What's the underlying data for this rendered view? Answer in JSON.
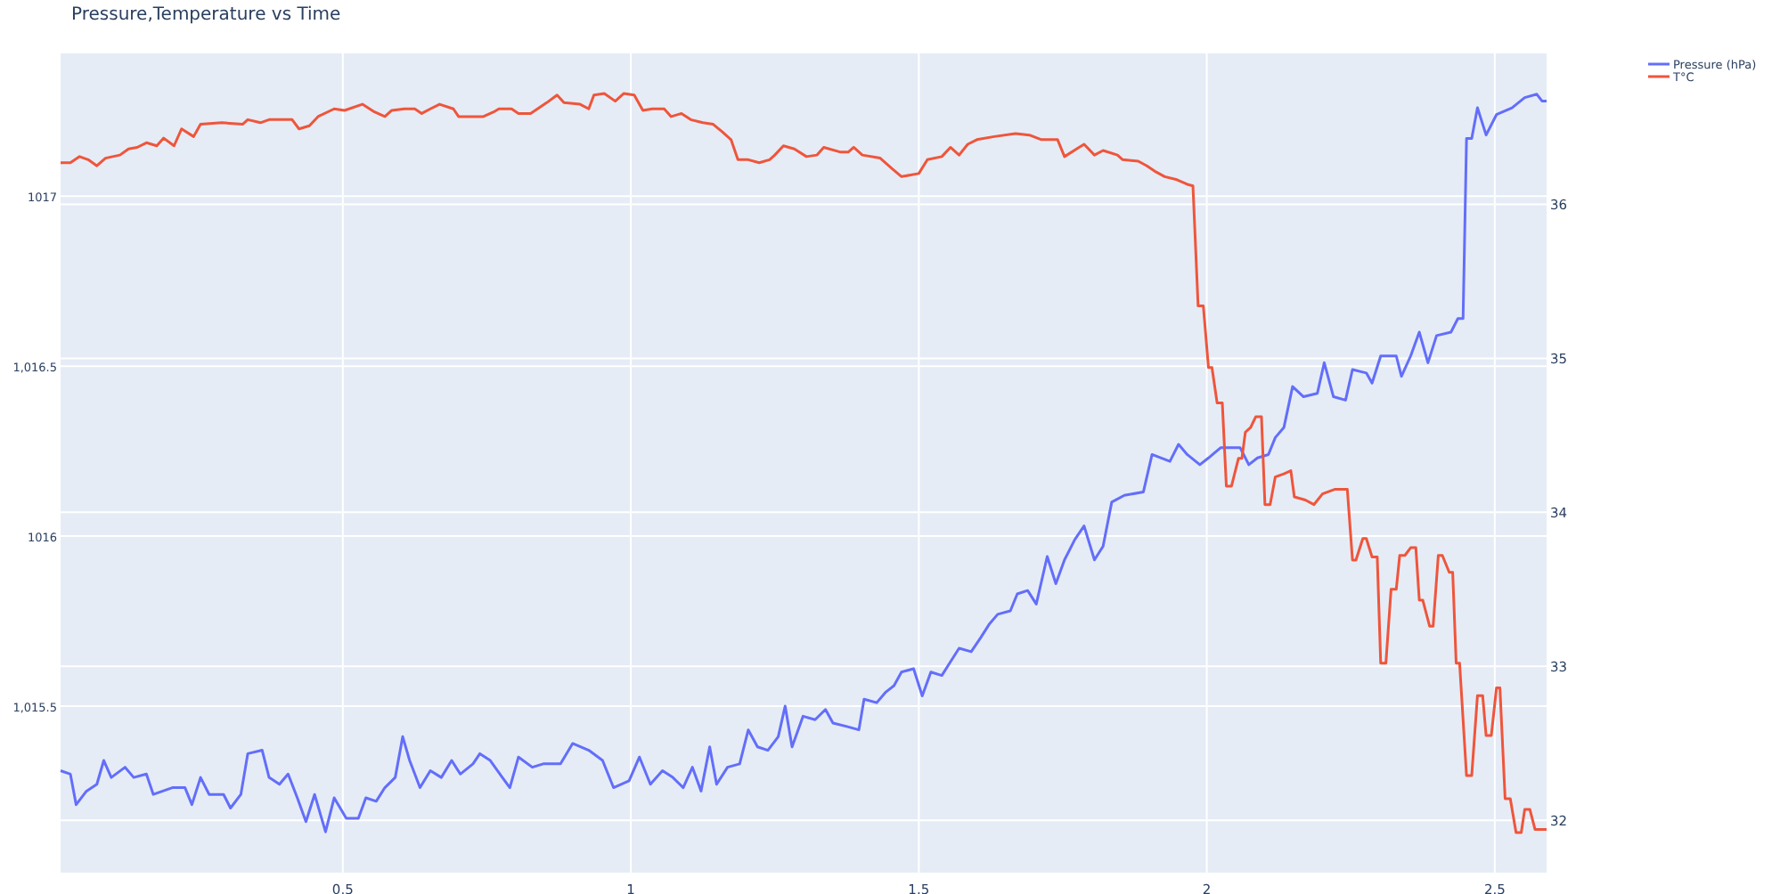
{
  "chart_data": {
    "type": "line",
    "title": "Pressure,Temperature vs Time",
    "legend": "top right",
    "grid": true,
    "line_style": "solid",
    "marker": "none",
    "xlim": [
      0.01,
      2.59
    ],
    "xticks": [
      0.5,
      1,
      1.5,
      2,
      2.5
    ],
    "ylim": [
      1015.01,
      1017.42
    ],
    "yticks": [
      {
        "value": 1015.5,
        "label": "1,015.5"
      },
      1016,
      {
        "value": 1016.5,
        "label": "1,016.5"
      },
      1017
    ],
    "y2lim": [
      31.66,
      36.98
    ],
    "y2ticks": [
      32,
      33,
      34,
      35,
      36
    ],
    "series": [
      {
        "name": "Pressure (hPa)",
        "color": "#636efa",
        "x": [
          0.01,
          0.027,
          0.037,
          0.055,
          0.073,
          0.085,
          0.098,
          0.122,
          0.137,
          0.159,
          0.171,
          0.204,
          0.226,
          0.238,
          0.253,
          0.268,
          0.293,
          0.305,
          0.323,
          0.335,
          0.36,
          0.372,
          0.39,
          0.405,
          0.421,
          0.436,
          0.451,
          0.47,
          0.485,
          0.506,
          0.527,
          0.54,
          0.558,
          0.573,
          0.591,
          0.604,
          0.616,
          0.634,
          0.652,
          0.671,
          0.689,
          0.704,
          0.726,
          0.738,
          0.756,
          0.777,
          0.79,
          0.805,
          0.829,
          0.848,
          0.878,
          0.899,
          0.927,
          0.951,
          0.97,
          0.997,
          1.015,
          1.034,
          1.055,
          1.073,
          1.091,
          1.107,
          1.122,
          1.137,
          1.149,
          1.168,
          1.189,
          1.204,
          1.22,
          1.238,
          1.256,
          1.268,
          1.28,
          1.299,
          1.32,
          1.338,
          1.351,
          1.375,
          1.396,
          1.405,
          1.427,
          1.442,
          1.457,
          1.47,
          1.491,
          1.506,
          1.521,
          1.54,
          1.555,
          1.57,
          1.591,
          1.607,
          1.622,
          1.637,
          1.659,
          1.671,
          1.689,
          1.704,
          1.723,
          1.738,
          1.753,
          1.771,
          1.787,
          1.805,
          1.82,
          1.835,
          1.857,
          1.89,
          1.905,
          1.936,
          1.951,
          1.966,
          1.988,
          2.003,
          2.024,
          2.058,
          2.073,
          2.088,
          2.107,
          2.119,
          2.134,
          2.149,
          2.168,
          2.192,
          2.204,
          2.22,
          2.241,
          2.253,
          2.277,
          2.287,
          2.302,
          2.329,
          2.338,
          2.354,
          2.369,
          2.384,
          2.399,
          2.424,
          2.436,
          2.445,
          2.451,
          2.46,
          2.47,
          2.485,
          2.503,
          2.53,
          2.552,
          2.573,
          2.582,
          2.59
        ],
        "values": [
          1015.31,
          1015.3,
          1015.21,
          1015.25,
          1015.27,
          1015.34,
          1015.29,
          1015.32,
          1015.29,
          1015.3,
          1015.24,
          1015.26,
          1015.26,
          1015.21,
          1015.29,
          1015.24,
          1015.24,
          1015.2,
          1015.24,
          1015.36,
          1015.37,
          1015.29,
          1015.27,
          1015.3,
          1015.23,
          1015.16,
          1015.24,
          1015.13,
          1015.23,
          1015.17,
          1015.17,
          1015.23,
          1015.22,
          1015.26,
          1015.29,
          1015.41,
          1015.34,
          1015.26,
          1015.31,
          1015.29,
          1015.34,
          1015.3,
          1015.33,
          1015.36,
          1015.34,
          1015.29,
          1015.26,
          1015.35,
          1015.32,
          1015.33,
          1015.33,
          1015.39,
          1015.37,
          1015.34,
          1015.26,
          1015.28,
          1015.35,
          1015.27,
          1015.31,
          1015.29,
          1015.26,
          1015.32,
          1015.25,
          1015.38,
          1015.27,
          1015.32,
          1015.33,
          1015.43,
          1015.38,
          1015.37,
          1015.41,
          1015.5,
          1015.38,
          1015.47,
          1015.46,
          1015.49,
          1015.45,
          1015.44,
          1015.43,
          1015.52,
          1015.51,
          1015.54,
          1015.56,
          1015.6,
          1015.61,
          1015.53,
          1015.6,
          1015.59,
          1015.63,
          1015.67,
          1015.66,
          1015.7,
          1015.74,
          1015.77,
          1015.78,
          1015.83,
          1015.84,
          1015.8,
          1015.94,
          1015.86,
          1015.93,
          1015.99,
          1016.03,
          1015.93,
          1015.97,
          1016.1,
          1016.12,
          1016.13,
          1016.24,
          1016.22,
          1016.27,
          1016.24,
          1016.21,
          1016.23,
          1016.26,
          1016.26,
          1016.21,
          1016.23,
          1016.24,
          1016.29,
          1016.32,
          1016.44,
          1016.41,
          1016.42,
          1016.51,
          1016.41,
          1016.4,
          1016.49,
          1016.48,
          1016.45,
          1016.53,
          1016.53,
          1016.47,
          1016.53,
          1016.6,
          1016.51,
          1016.59,
          1016.6,
          1016.64,
          1016.64,
          1017.17,
          1017.17,
          1017.26,
          1017.18,
          1017.24,
          1017.26,
          1017.29,
          1017.3,
          1017.28,
          1017.28
        ]
      },
      {
        "name": "T°C",
        "color": "#ef553b",
        "axis": "y2",
        "x": [
          0.01,
          0.027,
          0.043,
          0.058,
          0.073,
          0.088,
          0.113,
          0.128,
          0.143,
          0.159,
          0.177,
          0.189,
          0.207,
          0.22,
          0.241,
          0.253,
          0.29,
          0.326,
          0.335,
          0.357,
          0.372,
          0.412,
          0.424,
          0.442,
          0.457,
          0.485,
          0.503,
          0.534,
          0.555,
          0.573,
          0.585,
          0.607,
          0.625,
          0.637,
          0.652,
          0.668,
          0.692,
          0.701,
          0.744,
          0.762,
          0.771,
          0.793,
          0.805,
          0.826,
          0.838,
          0.854,
          0.872,
          0.884,
          0.912,
          0.927,
          0.936,
          0.954,
          0.973,
          0.988,
          1.006,
          1.021,
          1.037,
          1.058,
          1.07,
          1.088,
          1.104,
          1.125,
          1.143,
          1.159,
          1.174,
          1.186,
          1.204,
          1.223,
          1.241,
          1.25,
          1.265,
          1.284,
          1.305,
          1.323,
          1.335,
          1.363,
          1.378,
          1.387,
          1.402,
          1.433,
          1.454,
          1.47,
          1.5,
          1.515,
          1.54,
          1.555,
          1.57,
          1.585,
          1.601,
          1.631,
          1.668,
          1.692,
          1.713,
          1.741,
          1.753,
          1.774,
          1.787,
          1.805,
          1.82,
          1.845,
          1.854,
          1.881,
          1.896,
          1.912,
          1.927,
          1.948,
          1.966,
          1.976,
          1.985,
          1.994,
          2.003,
          2.009,
          2.018,
          2.027,
          2.034,
          2.043,
          2.055,
          2.061,
          2.067,
          2.076,
          2.085,
          2.095,
          2.101,
          2.11,
          2.119,
          2.134,
          2.146,
          2.152,
          2.171,
          2.186,
          2.201,
          2.223,
          2.244,
          2.253,
          2.259,
          2.271,
          2.277,
          2.287,
          2.296,
          2.302,
          2.311,
          2.32,
          2.329,
          2.335,
          2.344,
          2.354,
          2.363,
          2.369,
          2.375,
          2.387,
          2.393,
          2.402,
          2.409,
          2.421,
          2.427,
          2.433,
          2.439,
          2.451,
          2.46,
          2.47,
          2.479,
          2.485,
          2.494,
          2.503,
          2.509,
          2.518,
          2.527,
          2.537,
          2.546,
          2.552,
          2.561,
          2.57,
          2.59
        ],
        "values": [
          36.27,
          36.27,
          36.31,
          36.29,
          36.25,
          36.3,
          36.32,
          36.36,
          36.37,
          36.4,
          36.38,
          36.43,
          36.38,
          36.49,
          36.44,
          36.52,
          36.53,
          36.52,
          36.55,
          36.53,
          36.55,
          36.55,
          36.49,
          36.51,
          36.57,
          36.62,
          36.61,
          36.65,
          36.6,
          36.57,
          36.61,
          36.62,
          36.62,
          36.59,
          36.62,
          36.65,
          36.62,
          36.57,
          36.57,
          36.6,
          36.62,
          36.62,
          36.59,
          36.59,
          36.62,
          36.66,
          36.71,
          36.66,
          36.65,
          36.62,
          36.71,
          36.72,
          36.67,
          36.72,
          36.71,
          36.61,
          36.62,
          36.62,
          36.57,
          36.59,
          36.55,
          36.53,
          36.52,
          36.47,
          36.42,
          36.29,
          36.29,
          36.27,
          36.29,
          36.32,
          36.38,
          36.36,
          36.31,
          36.32,
          36.37,
          36.34,
          36.34,
          36.37,
          36.32,
          36.3,
          36.23,
          36.18,
          36.2,
          36.29,
          36.31,
          36.37,
          36.32,
          36.39,
          36.42,
          36.44,
          36.46,
          36.45,
          36.42,
          36.42,
          36.31,
          36.36,
          36.39,
          36.32,
          36.35,
          36.32,
          36.29,
          36.28,
          36.25,
          36.21,
          36.18,
          36.16,
          36.13,
          36.12,
          35.34,
          35.34,
          34.94,
          34.94,
          34.71,
          34.71,
          34.17,
          34.17,
          34.35,
          34.35,
          34.52,
          34.55,
          34.62,
          34.62,
          34.05,
          34.05,
          34.23,
          34.25,
          34.27,
          34.1,
          34.08,
          34.05,
          34.12,
          34.15,
          34.15,
          33.69,
          33.69,
          33.83,
          33.83,
          33.71,
          33.71,
          33.02,
          33.02,
          33.5,
          33.5,
          33.72,
          33.72,
          33.77,
          33.77,
          33.43,
          33.43,
          33.26,
          33.26,
          33.72,
          33.72,
          33.61,
          33.61,
          33.02,
          33.02,
          32.29,
          32.29,
          32.81,
          32.81,
          32.55,
          32.55,
          32.86,
          32.86,
          32.14,
          32.14,
          31.92,
          31.92,
          32.07,
          32.07,
          31.94,
          31.94
        ]
      }
    ]
  }
}
